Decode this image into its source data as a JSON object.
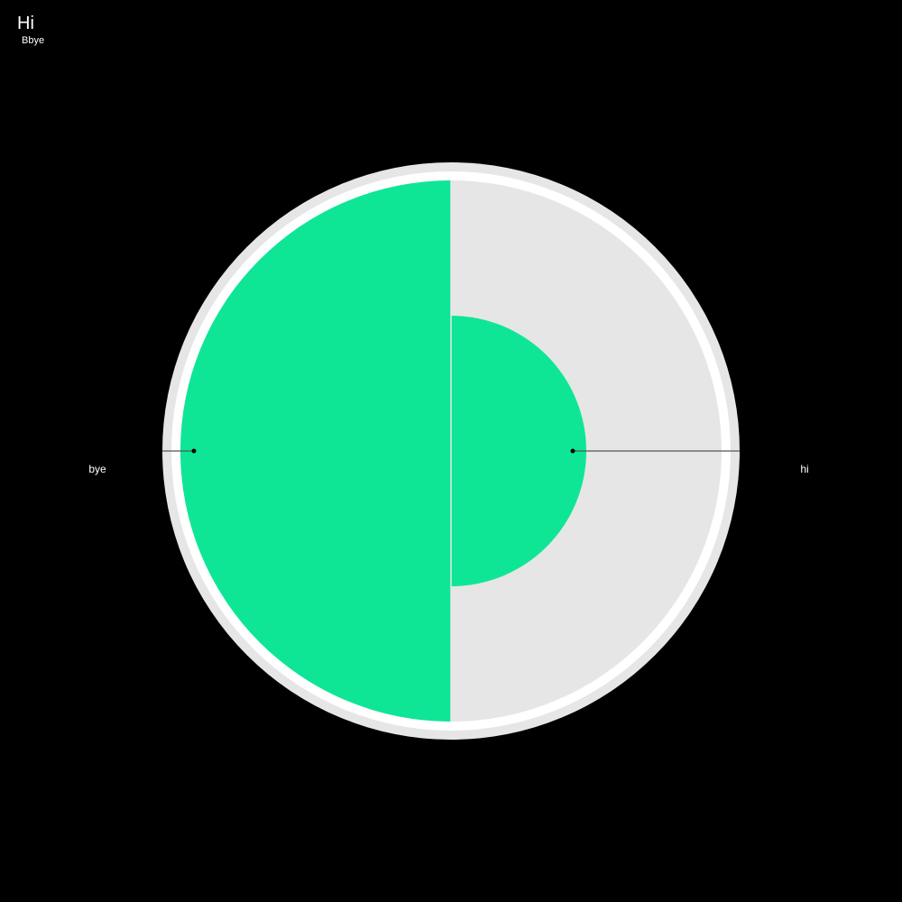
{
  "chart_data": {
    "type": "pie",
    "title": "Hi",
    "subtitle": "Bbye",
    "series": [
      {
        "values": [
          {
            "label": "hi",
            "value": 50,
            "color": "#0ee696"
          },
          {
            "label": "bye",
            "value": 50,
            "color": "#0ee696"
          }
        ]
      }
    ],
    "background_color": "#e6e6e6",
    "page_background": "#000000",
    "ring_color": "#ffffff",
    "leader_color": "#555555",
    "label_color": "#ffffff",
    "legend": "none"
  }
}
